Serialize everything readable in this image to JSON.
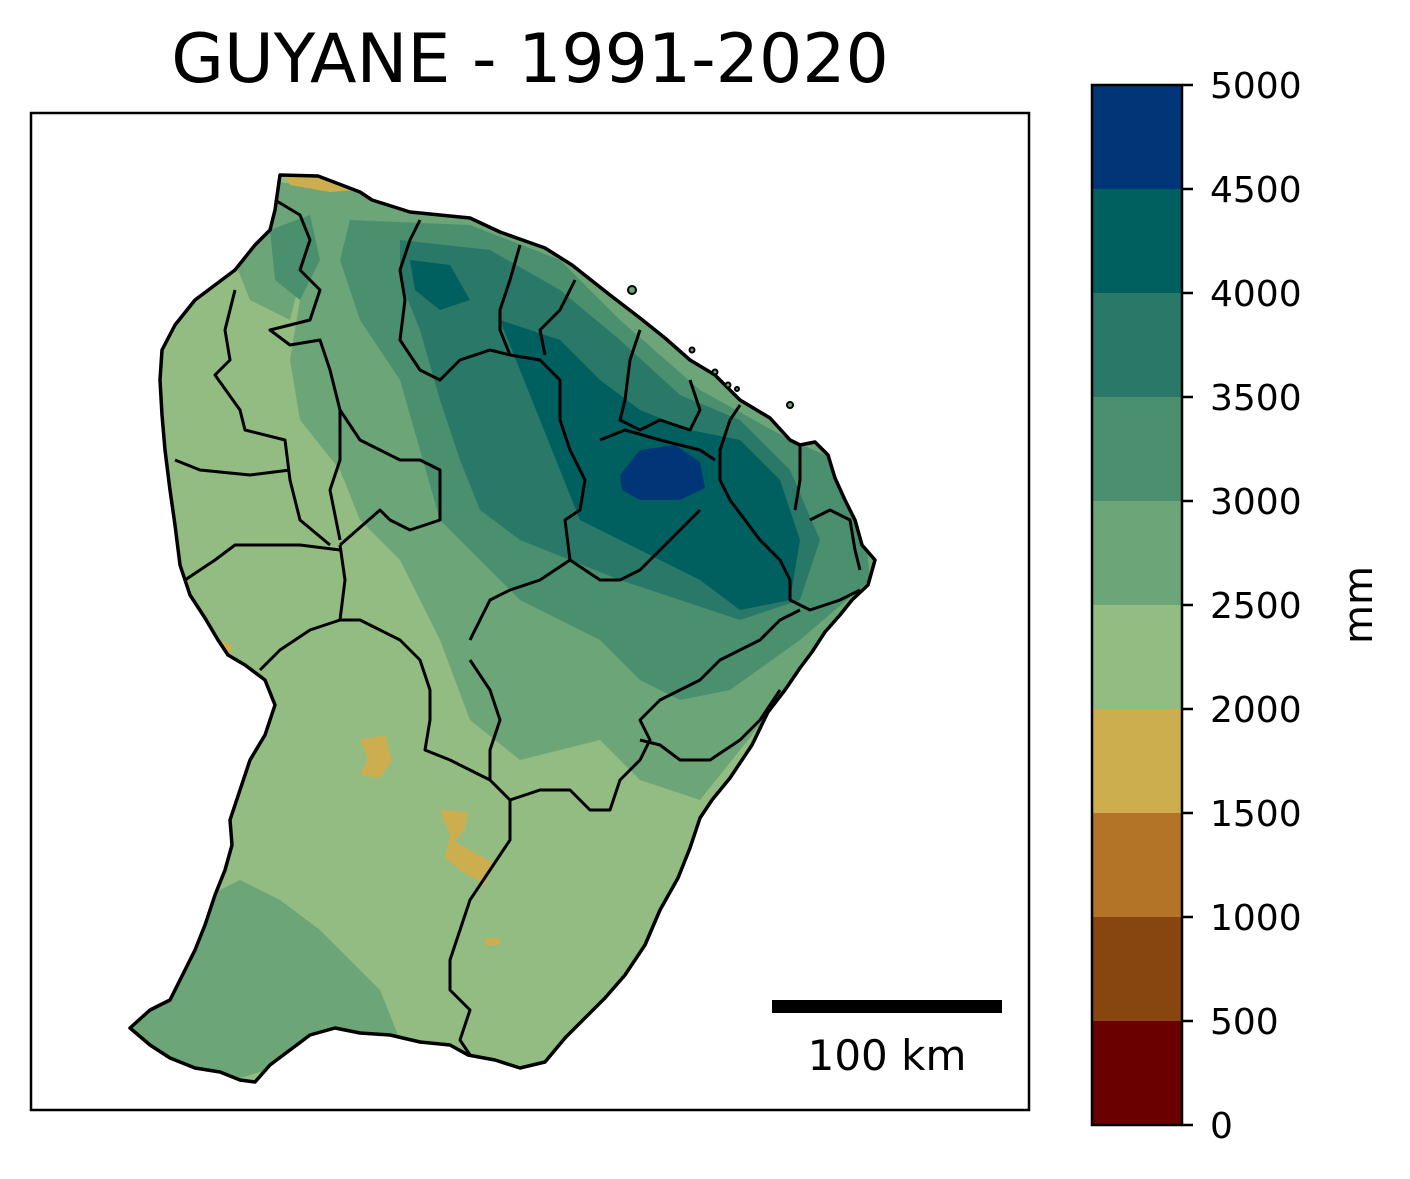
{
  "title": "GUYANE - 1991-2020",
  "scale_bar": {
    "label": "100 km"
  },
  "colorbar": {
    "unit": "mm",
    "ticks": [
      "0",
      "500",
      "1000",
      "1500",
      "2000",
      "2500",
      "3000",
      "3500",
      "4000",
      "4500",
      "5000"
    ],
    "bins": [
      {
        "min": 0,
        "max": 500,
        "color": "#6b0000"
      },
      {
        "min": 500,
        "max": 1000,
        "color": "#87450f"
      },
      {
        "min": 1000,
        "max": 1500,
        "color": "#b37427"
      },
      {
        "min": 1500,
        "max": 2000,
        "color": "#cdae4f"
      },
      {
        "min": 2000,
        "max": 2500,
        "color": "#93bc82"
      },
      {
        "min": 2500,
        "max": 3000,
        "color": "#6ca577"
      },
      {
        "min": 3000,
        "max": 3500,
        "color": "#4a906e"
      },
      {
        "min": 3500,
        "max": 4000,
        "color": "#2a7867"
      },
      {
        "min": 4000,
        "max": 4500,
        "color": "#005f5f"
      },
      {
        "min": 4500,
        "max": 5000,
        "color": "#003678"
      }
    ]
  }
}
